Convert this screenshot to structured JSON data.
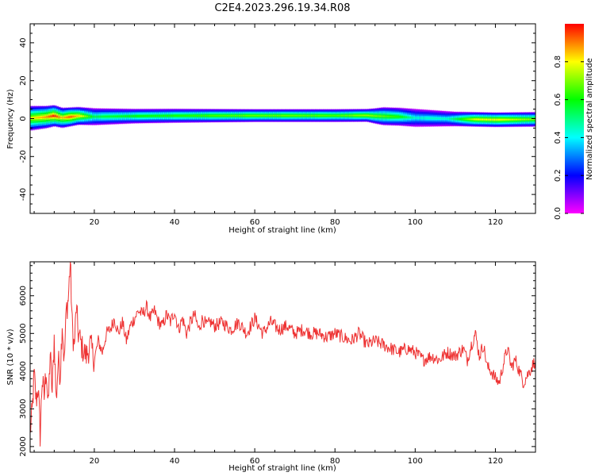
{
  "title": "C2E4.2023.296.19.34.R08",
  "colorbar": {
    "label": "Normalized spectral amplitude",
    "ticks": [
      "0.0",
      "0.2",
      "0.4",
      "0.6",
      "0.8"
    ],
    "range": [
      0,
      1
    ],
    "colormap": "gist_rainbow_r"
  },
  "chart_data": [
    {
      "type": "heatmap",
      "xlabel": "Height of straight line (km)",
      "ylabel": "Frequency (Hz)",
      "xlim": [
        4,
        130
      ],
      "ylim": [
        -50,
        50
      ],
      "xticks": [
        20,
        40,
        60,
        80,
        100,
        120
      ],
      "yticks": [
        -40,
        -20,
        0,
        20,
        40
      ],
      "x_tick_labels": [
        "20",
        "40",
        "60",
        "80",
        "100",
        "120"
      ],
      "y_tick_labels": [
        "-40",
        "-20",
        "0",
        "20",
        "40"
      ],
      "band": {
        "center_hz": [
          [
            4,
            0.2
          ],
          [
            8,
            0.8
          ],
          [
            10,
            1.5
          ],
          [
            12,
            0.4
          ],
          [
            14,
            0.9
          ],
          [
            16,
            1.4
          ],
          [
            20,
            1.0
          ],
          [
            30,
            1.3
          ],
          [
            40,
            1.5
          ],
          [
            60,
            1.6
          ],
          [
            80,
            1.6
          ],
          [
            88,
            1.7
          ],
          [
            90,
            1.4
          ],
          [
            96,
            1.0
          ],
          [
            100,
            0.4
          ],
          [
            110,
            -0.2
          ],
          [
            115,
            -0.4
          ],
          [
            120,
            -0.6
          ],
          [
            130,
            -0.4
          ]
        ],
        "peak_amplitude": [
          [
            4,
            0.8
          ],
          [
            8,
            0.9
          ],
          [
            10,
            1.0
          ],
          [
            12,
            0.85
          ],
          [
            14,
            0.95
          ],
          [
            16,
            0.85
          ],
          [
            20,
            0.55
          ],
          [
            30,
            0.6
          ],
          [
            40,
            0.62
          ],
          [
            50,
            0.66
          ],
          [
            60,
            0.68
          ],
          [
            70,
            0.68
          ],
          [
            80,
            0.66
          ],
          [
            88,
            0.72
          ],
          [
            92,
            0.68
          ],
          [
            96,
            0.62
          ],
          [
            100,
            0.45
          ],
          [
            108,
            0.45
          ],
          [
            115,
            0.78
          ],
          [
            120,
            0.8
          ],
          [
            125,
            0.75
          ],
          [
            130,
            0.7
          ]
        ],
        "width_hz": [
          [
            4,
            7
          ],
          [
            10,
            6
          ],
          [
            16,
            5
          ],
          [
            30,
            4
          ],
          [
            60,
            3.5
          ],
          [
            88,
            3.5
          ],
          [
            92,
            5
          ],
          [
            100,
            5
          ],
          [
            110,
            4
          ],
          [
            130,
            4
          ]
        ]
      }
    },
    {
      "type": "line",
      "xlabel": "Height of straight line (km)",
      "ylabel": "SNR (10 * v/v)",
      "xlim": [
        4,
        130
      ],
      "ylim": [
        1850,
        6900
      ],
      "xticks": [
        20,
        40,
        60,
        80,
        100,
        120
      ],
      "yticks": [
        2000,
        3000,
        4000,
        5000,
        6000
      ],
      "x_tick_labels": [
        "20",
        "40",
        "60",
        "80",
        "100",
        "120"
      ],
      "y_tick_labels": [
        "2000",
        "3000",
        "4000",
        "5000",
        "6000"
      ],
      "color": "#ee3333",
      "series": [
        {
          "x": [
            4,
            4.5,
            5,
            5.5,
            6,
            6.5,
            7,
            7.5,
            8,
            8.5,
            9,
            9.5,
            10,
            10.5,
            11,
            11.5,
            12,
            12.5,
            13,
            13.5,
            14,
            14.5,
            15,
            15.5,
            16,
            17,
            18,
            19,
            20,
            21,
            22,
            23,
            24,
            25,
            26,
            27,
            28,
            29,
            30,
            31,
            32,
            33,
            34,
            35,
            36,
            37,
            38,
            39,
            40,
            41,
            42,
            43,
            44,
            45,
            46,
            47,
            48,
            49,
            50,
            52,
            54,
            56,
            58,
            60,
            62,
            64,
            66,
            68,
            70,
            72,
            74,
            76,
            78,
            80,
            82,
            84,
            86,
            88,
            90,
            92,
            94,
            96,
            98,
            100,
            102,
            104,
            106,
            108,
            110,
            112,
            113,
            114,
            115,
            116,
            117,
            118,
            119,
            120,
            121,
            122,
            123,
            124,
            125,
            126,
            127,
            128,
            129,
            130
          ],
          "y": [
            2400,
            2900,
            3900,
            3200,
            3600,
            2300,
            3800,
            3300,
            4100,
            3000,
            4500,
            3400,
            4900,
            3200,
            4300,
            3900,
            5300,
            4200,
            5600,
            5900,
            6900,
            5200,
            4600,
            5700,
            5000,
            4600,
            4400,
            4700,
            4300,
            4800,
            4500,
            5000,
            5100,
            5400,
            5000,
            5300,
            4800,
            5200,
            5400,
            5600,
            5500,
            5700,
            5400,
            5600,
            5300,
            5200,
            5500,
            5300,
            5600,
            5100,
            5400,
            5000,
            5300,
            5500,
            5100,
            5400,
            5200,
            5300,
            5200,
            5300,
            5100,
            5300,
            5000,
            5400,
            5000,
            5300,
            5100,
            5200,
            5000,
            5100,
            5000,
            5000,
            4900,
            5000,
            4900,
            4800,
            5000,
            4700,
            4800,
            4700,
            4600,
            4500,
            4600,
            4500,
            4300,
            4400,
            4300,
            4500,
            4400,
            4600,
            4300,
            4700,
            5000,
            4400,
            4700,
            4100,
            4000,
            3800,
            3700,
            4200,
            4600,
            4100,
            4300,
            4000,
            3700,
            3900,
            4100,
            4300
          ]
        }
      ]
    }
  ]
}
